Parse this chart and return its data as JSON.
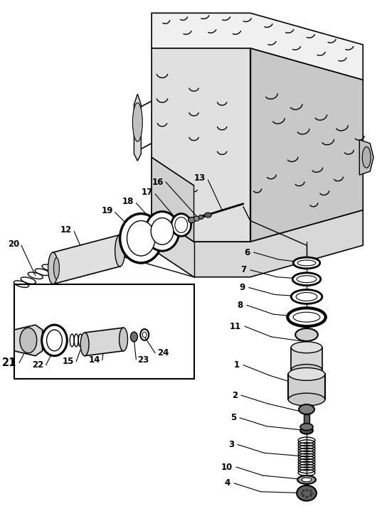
{
  "bg_color": "#ffffff",
  "line_color": "#000000",
  "fig_width": 5.37,
  "fig_height": 7.26,
  "dpi": 100,
  "vx": 0.79,
  "label_font_size": 8.5
}
